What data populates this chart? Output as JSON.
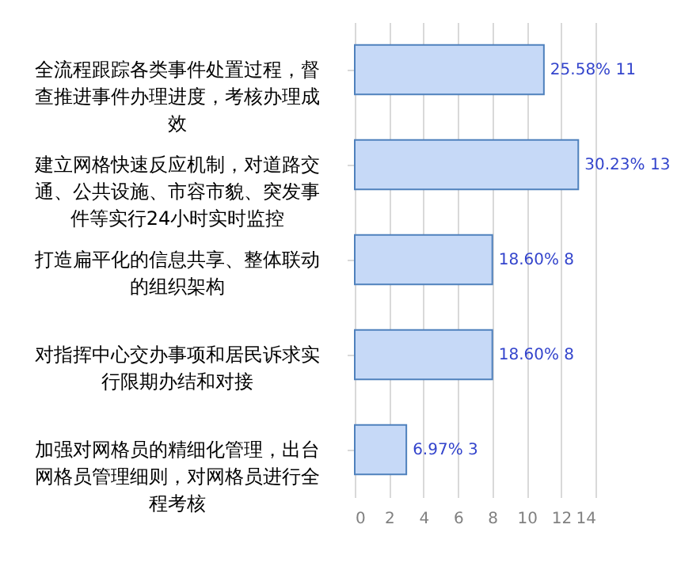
{
  "chart_data": {
    "type": "bar",
    "orientation": "horizontal",
    "categories": [
      "全流程跟踪各类事件处置过程，督查推进事件办理进度，考核办理成效",
      "建立网格快速反应机制，对道路交通、公共设施、市容市貌、突发事件等实行24小时实时监控",
      "打造扁平化的信息共享、整体联动的组织架构",
      "对指挥中心交办事项和居民诉求实行限期办结和对接",
      "加强对网格员的精细化管理，出台网格员管理细则，对网格员进行全程考核"
    ],
    "values": [
      11,
      13,
      8,
      8,
      3
    ],
    "value_labels": [
      "25.58% 11",
      "30.23% 13",
      "18.60% 8",
      "18.60% 8",
      "6.97% 3"
    ],
    "color": "#c6d9f7",
    "xlim": [
      0,
      14
    ],
    "xticks": [
      0,
      2,
      4,
      6,
      8,
      10,
      12,
      14
    ],
    "grid": "x"
  }
}
